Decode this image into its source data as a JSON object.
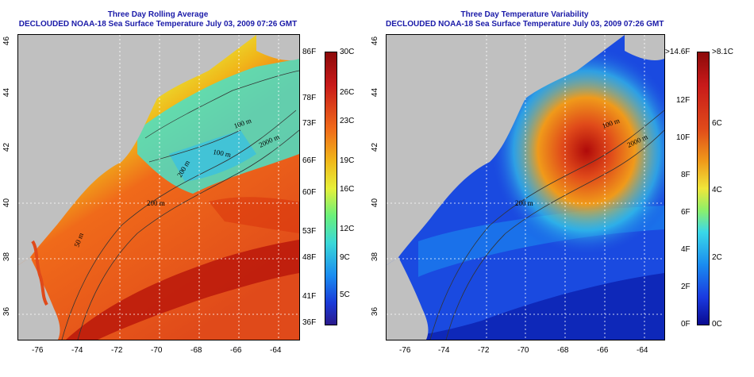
{
  "left_panel": {
    "title_line1": "Three Day Rolling Average",
    "title_line2": "DECLOUDED NOAA-18 Sea Surface Temperature July 03, 2009 07:26 GMT",
    "contours": [
      "100 m",
      "2000 m",
      "100 m",
      "200 m",
      "50 m",
      "200 m"
    ],
    "colorbar": {
      "f_labels": [
        "86F",
        "78F",
        "73F",
        "66F",
        "60F",
        "53F",
        "48F",
        "41F",
        "36F"
      ],
      "c_labels": [
        "30C",
        "26C",
        "23C",
        "19C",
        "16C",
        "12C",
        "9C",
        "5C"
      ]
    }
  },
  "right_panel": {
    "title_line1": "Three Day Temperature Variability",
    "title_line2": "DECLOUDED NOAA-18 Sea Surface Temperature July 03, 2009 07:26 GMT",
    "contours": [
      "100 m",
      "2000 m",
      "200 m"
    ],
    "colorbar": {
      "f_labels": [
        ">14.6F",
        "12F",
        "10F",
        "8F",
        "6F",
        "4F",
        "2F",
        "0F"
      ],
      "c_labels": [
        ">8.1C",
        "6C",
        "4C",
        "2C",
        "0C"
      ]
    }
  },
  "lon_labels": [
    "-76",
    "-74",
    "-72",
    "-70",
    "-68",
    "-66",
    "-64"
  ],
  "lat_labels": [
    "46",
    "44",
    "42",
    "40",
    "38",
    "36"
  ],
  "colors": {
    "title": "#1a1aa8",
    "land": "#c0c0c0",
    "sst_scale": [
      "#2a1a8c",
      "#1a3ad8",
      "#1a8cf0",
      "#3ad8d8",
      "#6af07a",
      "#e6f03a",
      "#f0b81a",
      "#f06a1a",
      "#c81a1a",
      "#8c0a0a"
    ],
    "var_scale": [
      "#0a0a90",
      "#1a3ae0",
      "#1a8cf0",
      "#3ad8e8",
      "#8cf06a",
      "#f0e63a",
      "#f09a1a",
      "#e04a1a",
      "#b00a0a"
    ]
  }
}
